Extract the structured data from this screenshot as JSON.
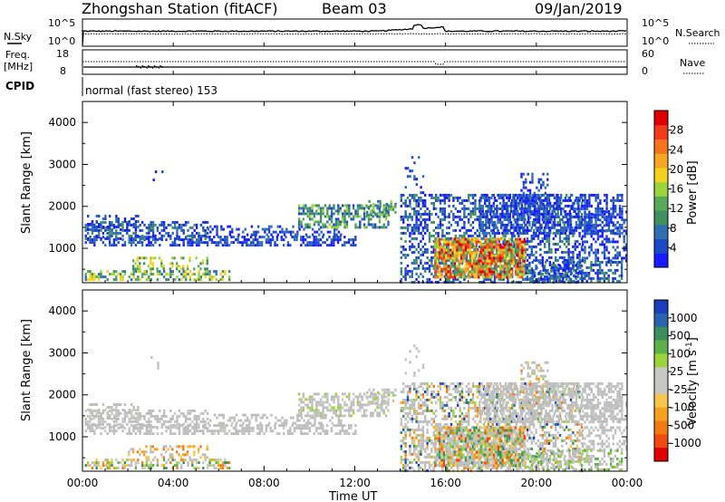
{
  "header": {
    "title": "Zhongshan Station (fitACF)",
    "beam": "Beam 03",
    "date": "09/Jan/2019"
  },
  "top_panels": {
    "nsky_label": "N.Sky",
    "nsearch_label": "N.Search",
    "noise_ticks_left": [
      "10^5",
      "10^0"
    ],
    "noise_ticks_right": [
      "10^5",
      "10^0"
    ],
    "freq_label_line1": "Freq.",
    "freq_label_line2": "[MHz]",
    "freq_ticks": [
      "18",
      "8"
    ],
    "nave_label": "Nave",
    "nave_ticks": [
      "60",
      "0"
    ],
    "cpid_label": "CPID",
    "cpid_text": "normal (fast stereo) 153"
  },
  "colors": {
    "power_scale": [
      "#1a1aff",
      "#1c49c4",
      "#2f6fb1",
      "#3f8f5f",
      "#5aa85a",
      "#9ad43a",
      "#f2d21f",
      "#f5a623",
      "#f5731f",
      "#f03c1a",
      "#e00000"
    ],
    "velocity_scale": [
      "#1a3fb8",
      "#2a62b0",
      "#3a8f5c",
      "#5fb04a",
      "#9ad43a",
      "#c7c7c4",
      "#c7c7c4",
      "#f5c64a",
      "#f5a020",
      "#f27a12",
      "#f04a10",
      "#e00000"
    ],
    "ground_scatter": "#bdbdbd"
  },
  "chart_data": [
    {
      "type": "heatmap",
      "title": "",
      "xlabel": "",
      "ylabel": "Slant Range [km]",
      "ylim": [
        180,
        4500
      ],
      "yticks": [
        "1000",
        "2000",
        "3000",
        "4000"
      ],
      "colorbar_label": "Power [dB]",
      "colorbar_range": [
        0,
        32
      ],
      "colorbar_ticks": [
        "4",
        "8",
        "12",
        "16",
        "20",
        "24",
        "28"
      ]
    },
    {
      "type": "heatmap",
      "title": "",
      "xlabel": "Time UT",
      "ylabel": "Slant Range [km]",
      "ylim": [
        180,
        4500
      ],
      "yticks": [
        "1000",
        "2000",
        "3000",
        "4000"
      ],
      "xticks": [
        "00:00",
        "04:00",
        "08:00",
        "12:00",
        "16:00",
        "20:00",
        "00:00"
      ],
      "colorbar_label": "Velocity [m s-1]",
      "colorbar_ticks": [
        "1000",
        "500",
        "100",
        "25",
        "-25",
        "-100",
        "-500",
        "-1000"
      ]
    }
  ]
}
